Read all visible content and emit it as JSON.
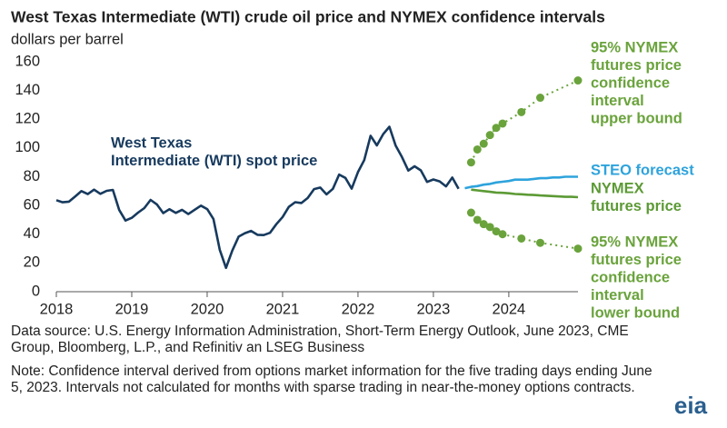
{
  "chart_data": {
    "type": "line",
    "title": "West Texas Intermediate (WTI) crude oil price and NYMEX confidence intervals",
    "y_label": "dollars per barrel",
    "xlim": [
      2018,
      2024.917
    ],
    "xticks": [
      2018,
      2019,
      2020,
      2021,
      2022,
      2023,
      2024
    ],
    "ylim": [
      0,
      160
    ],
    "yticks": [
      0,
      20,
      40,
      60,
      80,
      100,
      120,
      140,
      160
    ],
    "grid": false,
    "series": [
      {
        "label": [
          "West Texas",
          "Intermediate (WTI) spot price"
        ],
        "color": "#173a5e",
        "style": "solid",
        "x": [
          2018,
          2018.083,
          2018.167,
          2018.25,
          2018.333,
          2018.417,
          2018.5,
          2018.583,
          2018.667,
          2018.75,
          2018.833,
          2018.917,
          2019,
          2019.083,
          2019.167,
          2019.25,
          2019.333,
          2019.417,
          2019.5,
          2019.583,
          2019.667,
          2019.75,
          2019.833,
          2019.917,
          2020,
          2020.083,
          2020.167,
          2020.25,
          2020.333,
          2020.417,
          2020.5,
          2020.583,
          2020.667,
          2020.75,
          2020.833,
          2020.917,
          2021,
          2021.083,
          2021.167,
          2021.25,
          2021.333,
          2021.417,
          2021.5,
          2021.583,
          2021.667,
          2021.75,
          2021.833,
          2021.917,
          2022,
          2022.083,
          2022.167,
          2022.25,
          2022.333,
          2022.417,
          2022.5,
          2022.583,
          2022.667,
          2022.75,
          2022.833,
          2022.917,
          2023,
          2023.083,
          2023.167,
          2023.25,
          2023.333
        ],
        "values": [
          63.7,
          62.2,
          62.7,
          66.3,
          70.0,
          67.9,
          71.0,
          68.1,
          70.2,
          70.8,
          57.0,
          49.5,
          51.4,
          55.0,
          58.2,
          63.9,
          60.8,
          54.7,
          57.4,
          54.8,
          57.0,
          54.0,
          57.0,
          59.9,
          57.5,
          50.5,
          29.2,
          16.6,
          28.6,
          38.3,
          40.7,
          42.3,
          39.6,
          39.4,
          41.0,
          47.0,
          52.0,
          59.0,
          62.3,
          61.7,
          65.2,
          71.4,
          72.5,
          67.7,
          71.6,
          81.5,
          79.2,
          71.7,
          83.2,
          91.6,
          108.5,
          101.8,
          109.6,
          114.8,
          101.6,
          93.7,
          84.3,
          87.3,
          84.4,
          76.4,
          78.1,
          76.8,
          73.3,
          79.4,
          71.6
        ]
      },
      {
        "label": [
          "STEO forecast"
        ],
        "color": "#2ea3dc",
        "style": "solid",
        "x": [
          2023.417,
          2023.5,
          2023.583,
          2023.667,
          2023.75,
          2023.833,
          2023.917,
          2024,
          2024.083,
          2024.167,
          2024.25,
          2024.333,
          2024.417,
          2024.5,
          2024.583,
          2024.667,
          2024.75,
          2024.833,
          2024.917
        ],
        "values": [
          72,
          73,
          73.5,
          74.5,
          75,
          76,
          76.5,
          77,
          78,
          78,
          78,
          78.5,
          79,
          79,
          79.5,
          79.5,
          80,
          80,
          80
        ]
      },
      {
        "label": [
          "NYMEX",
          "futures price"
        ],
        "color": "#5c9a35",
        "style": "solid",
        "x": [
          2023.5,
          2023.583,
          2023.667,
          2023.75,
          2023.833,
          2023.917,
          2024,
          2024.083,
          2024.167,
          2024.25,
          2024.333,
          2024.417,
          2024.5,
          2024.583,
          2024.667,
          2024.75,
          2024.833,
          2024.917
        ],
        "values": [
          71,
          70.5,
          70,
          69.5,
          69,
          68.8,
          68.5,
          68,
          67.8,
          67.5,
          67.3,
          67,
          66.8,
          66.5,
          66.3,
          66,
          66,
          65.8
        ]
      },
      {
        "label": [
          "95% NYMEX",
          "futures price",
          "confidence",
          "interval",
          "upper bound"
        ],
        "color": "#6aa33c",
        "style": "dotted",
        "x": [
          2023.5,
          2023.583,
          2023.667,
          2023.75,
          2023.833,
          2023.917,
          2024.167,
          2024.417,
          2024.917
        ],
        "values": [
          90,
          99,
          103,
          109,
          114,
          117,
          125,
          135,
          147
        ]
      },
      {
        "label": [
          "95% NYMEX",
          "futures price",
          "confidence",
          "interval",
          "lower bound"
        ],
        "color": "#6aa33c",
        "style": "dotted",
        "x": [
          2023.5,
          2023.583,
          2023.667,
          2023.75,
          2023.833,
          2023.917,
          2024.167,
          2024.417,
          2024.917
        ],
        "values": [
          55,
          50,
          47,
          45,
          42,
          40,
          37,
          34,
          30
        ]
      }
    ],
    "source": "Data source: U.S. Energy Information Administration, Short-Term Energy Outlook, June 2023, CME Group, Bloomberg, L.P., and Refinitiv an LSEG Business",
    "note": "Note: Confidence interval derived from options market information for the five trading days ending June 5, 2023. Intervals not calculated for months with sparse trading in near-the-money options contracts.",
    "logo": "eia"
  }
}
